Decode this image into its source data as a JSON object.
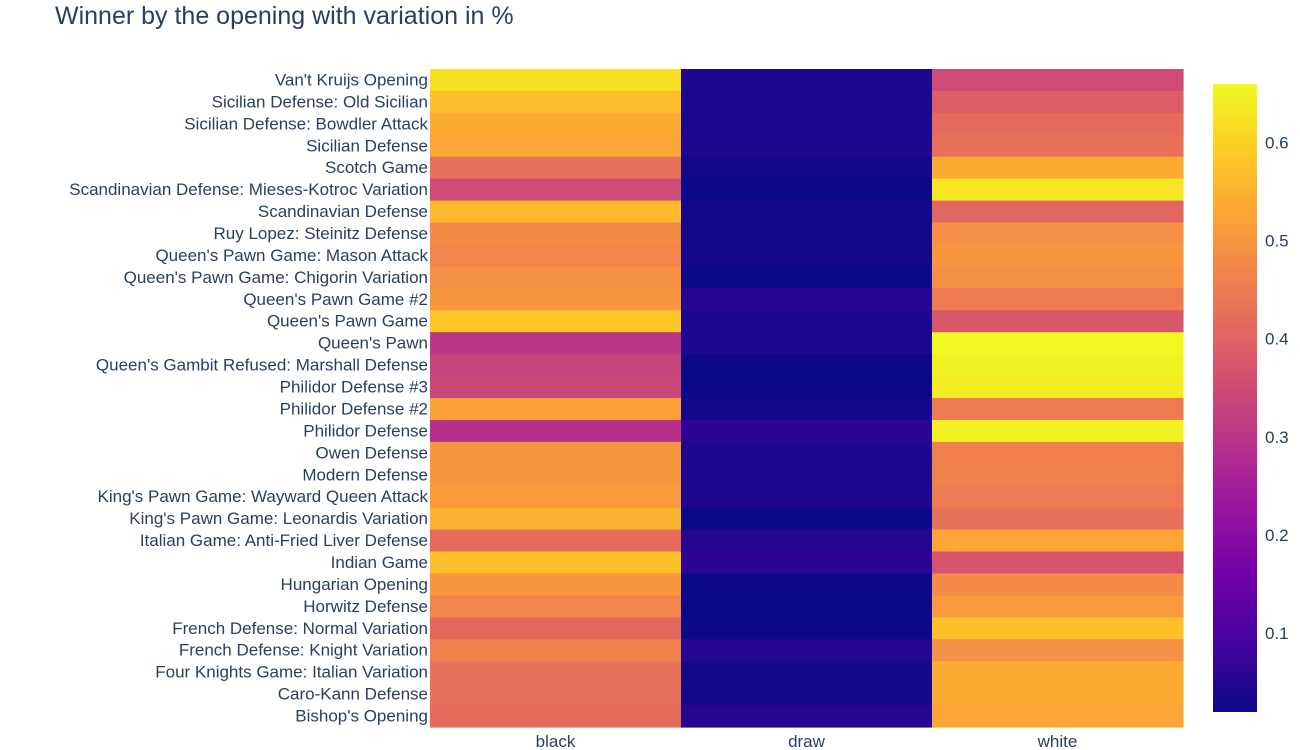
{
  "chart_data": {
    "type": "heatmap",
    "title": "Winner by the opening with variation in %",
    "x": [
      "black",
      "draw",
      "white"
    ],
    "y": [
      "Van't Kruijs Opening",
      "Sicilian Defense: Old Sicilian",
      "Sicilian Defense: Bowdler Attack",
      "Sicilian Defense",
      "Scotch Game",
      "Scandinavian Defense: Mieses-Kotroc Variation",
      "Scandinavian Defense",
      "Ruy Lopez: Steinitz Defense",
      "Queen's Pawn Game: Mason Attack",
      "Queen's Pawn Game: Chigorin Variation",
      "Queen's Pawn Game #2",
      "Queen's Pawn Game",
      "Queen's Pawn",
      "Queen's Gambit Refused: Marshall Defense",
      "Philidor Defense #3",
      "Philidor Defense #2",
      "Philidor Defense",
      "Owen Defense",
      "Modern Defense",
      "King's Pawn Game: Wayward Queen Attack",
      "King's Pawn Game: Leonardis Variation",
      "Italian Game: Anti-Fried Liver Defense",
      "Indian Game",
      "Hungarian Opening",
      "Horwitz Defense",
      "French Defense: Normal Variation",
      "French Defense: Knight Variation",
      "Four Knights Game: Italian Variation",
      "Caro-Kann Defense",
      "Bishop's Opening"
    ],
    "z": [
      [
        0.62,
        0.04,
        0.35
      ],
      [
        0.57,
        0.04,
        0.39
      ],
      [
        0.54,
        0.04,
        0.42
      ],
      [
        0.53,
        0.04,
        0.43
      ],
      [
        0.43,
        0.03,
        0.54
      ],
      [
        0.35,
        0.02,
        0.63
      ],
      [
        0.56,
        0.03,
        0.41
      ],
      [
        0.48,
        0.03,
        0.49
      ],
      [
        0.47,
        0.03,
        0.5
      ],
      [
        0.49,
        0.02,
        0.49
      ],
      [
        0.5,
        0.05,
        0.45
      ],
      [
        0.58,
        0.04,
        0.38
      ],
      [
        0.3,
        0.04,
        0.66
      ],
      [
        0.33,
        0.02,
        0.65
      ],
      [
        0.34,
        0.02,
        0.64
      ],
      [
        0.52,
        0.03,
        0.45
      ],
      [
        0.29,
        0.06,
        0.65
      ],
      [
        0.5,
        0.04,
        0.46
      ],
      [
        0.5,
        0.04,
        0.46
      ],
      [
        0.51,
        0.04,
        0.45
      ],
      [
        0.55,
        0.02,
        0.43
      ],
      [
        0.42,
        0.05,
        0.53
      ],
      [
        0.57,
        0.06,
        0.37
      ],
      [
        0.5,
        0.02,
        0.48
      ],
      [
        0.47,
        0.02,
        0.51
      ],
      [
        0.41,
        0.02,
        0.57
      ],
      [
        0.46,
        0.05,
        0.49
      ],
      [
        0.43,
        0.03,
        0.54
      ],
      [
        0.43,
        0.03,
        0.54
      ],
      [
        0.42,
        0.05,
        0.53
      ]
    ],
    "colorscale": "plasma",
    "zmin": 0.02,
    "zmax": 0.66,
    "colorbar": {
      "ticks": [
        "0.1",
        "0.2",
        "0.3",
        "0.4",
        "0.5",
        "0.6"
      ],
      "tick_values": [
        0.1,
        0.2,
        0.3,
        0.4,
        0.5,
        0.6
      ],
      "placement": "right"
    },
    "colors": [
      "#0d0887",
      "#46039f",
      "#7201a8",
      "#9c179e",
      "#bd3786",
      "#d8576b",
      "#ed7953",
      "#fb9f3a",
      "#fdca26",
      "#f0f921"
    ],
    "text_color": "#2a3f5f"
  }
}
